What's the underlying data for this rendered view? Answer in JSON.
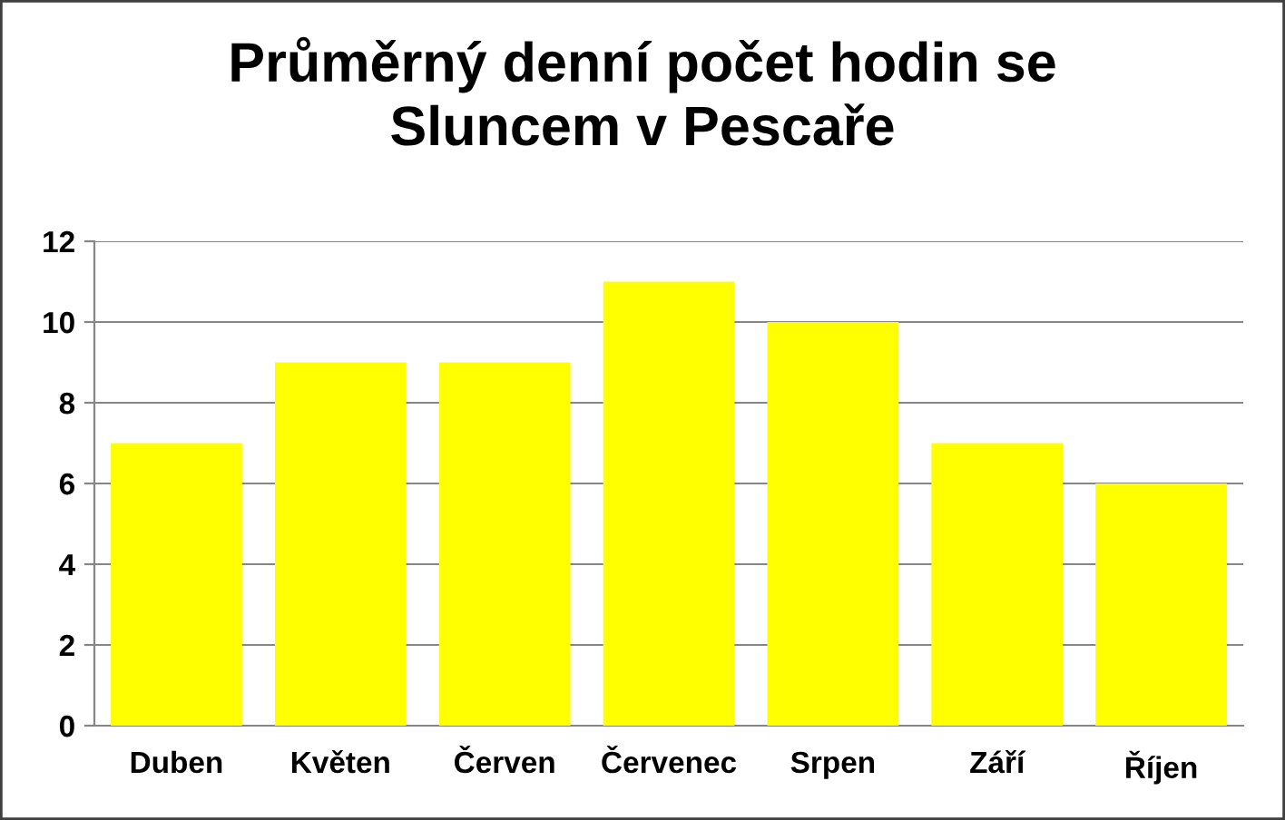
{
  "chart_data": {
    "type": "bar",
    "title": "Průměrný denní počet hodin se\nSluncem v Pescaře",
    "categories": [
      "Duben",
      "Květen",
      "Červen",
      "Červenec",
      "Srpen",
      "Září",
      "Říjen"
    ],
    "values": [
      7,
      9,
      9,
      11,
      10,
      7,
      6
    ],
    "color": "#ffff00",
    "ylim": [
      0,
      12
    ],
    "yticks": [
      0,
      2,
      4,
      6,
      8,
      10,
      12
    ],
    "grid": "y",
    "legend": false
  }
}
